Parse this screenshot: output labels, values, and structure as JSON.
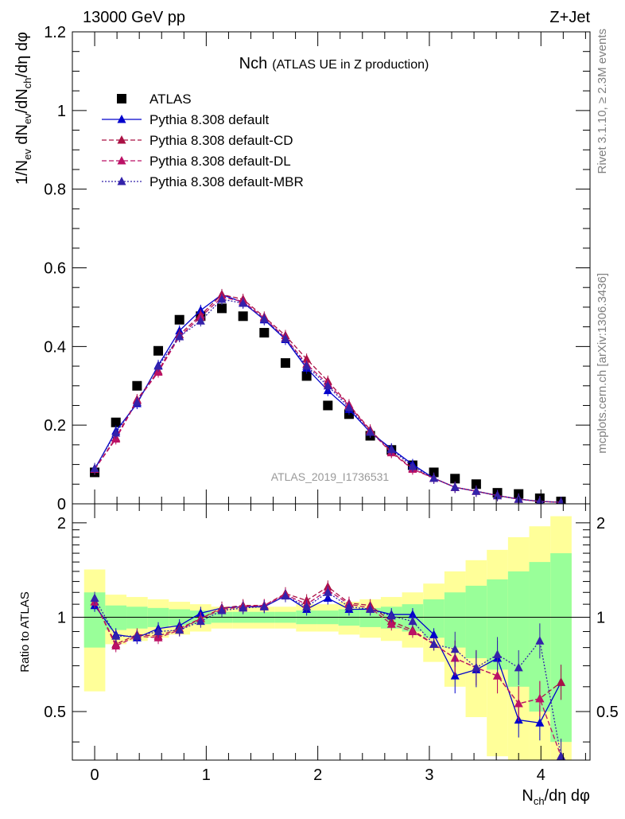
{
  "header": {
    "energy_label": "13000 GeV pp",
    "process_label": "Z+Jet",
    "side_rivet": "Rivet 3.1.10, ≥ 2.3M events",
    "side_mcplots": "mcplots.cern.ch [arXiv:1306.3436]"
  },
  "chart_data": [
    {
      "type": "scatter",
      "title": "Nch",
      "subtitle": "(ATLAS UE in Z production)",
      "watermark": "ATLAS_2019_I1736531",
      "ylabel": "1/N_ev dN_ev/dN_ch/dη dφ",
      "ylabel_parts": {
        "a": "1/N",
        "b": "ev",
        "c": " dN",
        "d": "ev",
        "e": "/dN",
        "f": "ch",
        "g": "/dη dφ"
      },
      "xlim": [
        -0.2,
        4.44
      ],
      "ylim": [
        0,
        1.2
      ],
      "y_ticks": [
        "0",
        "0.2",
        "0.4",
        "0.6",
        "0.8",
        "1",
        "1.2"
      ],
      "legend_position": "top-left",
      "x": [
        0.0,
        0.19,
        0.38,
        0.57,
        0.76,
        0.95,
        1.14,
        1.33,
        1.52,
        1.71,
        1.9,
        2.09,
        2.28,
        2.47,
        2.66,
        2.85,
        3.04,
        3.23,
        3.42,
        3.61,
        3.8,
        3.99,
        4.18
      ],
      "series": [
        {
          "name": "ATLAS",
          "marker": "square",
          "color": "#000000",
          "line": "none",
          "values": [
            0.08,
            0.207,
            0.3,
            0.389,
            0.468,
            0.477,
            0.497,
            0.477,
            0.435,
            0.358,
            0.325,
            0.25,
            0.228,
            0.173,
            0.137,
            0.098,
            0.08,
            0.064,
            0.05,
            0.028,
            0.025,
            0.014,
            0.006
          ]
        },
        {
          "name": "Pythia 8.308 default",
          "marker": "triangle",
          "color": "#0000cc",
          "line": "solid",
          "values": [
            0.088,
            0.185,
            0.255,
            0.352,
            0.44,
            0.492,
            0.532,
            0.512,
            0.468,
            0.418,
            0.345,
            0.288,
            0.24,
            0.182,
            0.14,
            0.1,
            0.065,
            0.042,
            0.032,
            0.021,
            0.012,
            0.006,
            0.004
          ]
        },
        {
          "name": "Pythia 8.308 default-CD",
          "marker": "triangle",
          "color": "#aa1144",
          "line": "dashed",
          "values": [
            0.088,
            0.168,
            0.265,
            0.338,
            0.43,
            0.48,
            0.532,
            0.52,
            0.475,
            0.428,
            0.368,
            0.312,
            0.252,
            0.188,
            0.132,
            0.09,
            0.065,
            0.042,
            0.032,
            0.021,
            0.012,
            0.006,
            0.004
          ]
        },
        {
          "name": "Pythia 8.308 default-DL",
          "marker": "triangle",
          "color": "#bb1166",
          "line": "dashed",
          "values": [
            0.088,
            0.165,
            0.262,
            0.335,
            0.425,
            0.475,
            0.525,
            0.515,
            0.472,
            0.422,
            0.355,
            0.305,
            0.25,
            0.185,
            0.13,
            0.088,
            0.065,
            0.042,
            0.032,
            0.021,
            0.012,
            0.006,
            0.004
          ]
        },
        {
          "name": "Pythia 8.308 default-MBR",
          "marker": "triangle",
          "color": "#3322aa",
          "line": "dotted",
          "values": [
            0.09,
            0.18,
            0.258,
            0.35,
            0.425,
            0.465,
            0.52,
            0.51,
            0.47,
            0.42,
            0.35,
            0.3,
            0.245,
            0.182,
            0.138,
            0.095,
            0.065,
            0.042,
            0.032,
            0.021,
            0.012,
            0.006,
            0.004
          ]
        }
      ]
    },
    {
      "type": "line",
      "ylabel": "Ratio to ATLAS",
      "xlabel": "N_ch/dη dφ",
      "xlabel_parts": {
        "a": "N",
        "b": "ch",
        "c": "/dη dφ"
      },
      "xlim": [
        -0.2,
        4.44
      ],
      "ylim": [
        0.35,
        2.3
      ],
      "x_ticks": [
        "0",
        "1",
        "2",
        "3",
        "4"
      ],
      "y_ticks": [
        "0.5",
        "1",
        "2"
      ],
      "y_scale": "log",
      "reference_line": 1,
      "x": [
        0.0,
        0.19,
        0.38,
        0.57,
        0.76,
        0.95,
        1.14,
        1.33,
        1.52,
        1.71,
        1.9,
        2.09,
        2.28,
        2.47,
        2.66,
        2.85,
        3.04,
        3.23,
        3.42,
        3.61,
        3.8,
        3.99,
        4.18
      ],
      "band_green_half_width": [
        0.2,
        0.09,
        0.08,
        0.07,
        0.06,
        0.05,
        0.04,
        0.04,
        0.04,
        0.04,
        0.05,
        0.05,
        0.06,
        0.07,
        0.08,
        0.1,
        0.14,
        0.2,
        0.26,
        0.32,
        0.4,
        0.5,
        0.6
      ],
      "band_yellow_half_width": [
        0.42,
        0.18,
        0.16,
        0.14,
        0.12,
        0.1,
        0.08,
        0.08,
        0.08,
        0.08,
        0.1,
        0.1,
        0.12,
        0.14,
        0.16,
        0.2,
        0.28,
        0.4,
        0.52,
        0.64,
        0.8,
        0.95,
        1.1
      ],
      "series": [
        {
          "name": "Pythia 8.308 default",
          "color": "#0000cc",
          "line": "solid",
          "values": [
            1.09,
            0.88,
            0.86,
            0.92,
            0.94,
            1.03,
            1.07,
            1.08,
            1.08,
            1.17,
            1.06,
            1.15,
            1.06,
            1.06,
            1.02,
            1.02,
            0.88,
            0.65,
            0.68,
            0.74,
            0.47,
            0.46,
            0.62
          ]
        },
        {
          "name": "Pythia 8.308 default-CD",
          "color": "#aa1144",
          "line": "dashed",
          "values": [
            1.12,
            0.82,
            0.88,
            0.87,
            0.92,
            0.99,
            1.07,
            1.09,
            1.09,
            1.19,
            1.13,
            1.25,
            1.11,
            1.09,
            0.97,
            0.91,
            0.82,
            0.74,
            0.69,
            0.65,
            0.53,
            0.55,
            0.62
          ]
        },
        {
          "name": "Pythia 8.308 default-DL",
          "color": "#bb1166",
          "line": "dashed",
          "values": [
            1.12,
            0.81,
            0.87,
            0.86,
            0.91,
            0.99,
            1.06,
            1.08,
            1.09,
            1.18,
            1.1,
            1.22,
            1.1,
            1.07,
            0.95,
            0.9,
            0.82,
            0.74,
            0.69,
            0.65,
            0.53,
            0.55,
            0.36
          ]
        },
        {
          "name": "Pythia 8.308 default-MBR",
          "color": "#3322aa",
          "line": "dotted",
          "values": [
            1.15,
            0.87,
            0.87,
            0.9,
            0.91,
            0.97,
            1.05,
            1.07,
            1.08,
            1.17,
            1.08,
            1.2,
            1.08,
            1.06,
            1.01,
            0.97,
            0.82,
            0.79,
            0.69,
            0.76,
            0.69,
            0.84,
            0.36
          ]
        }
      ]
    }
  ]
}
